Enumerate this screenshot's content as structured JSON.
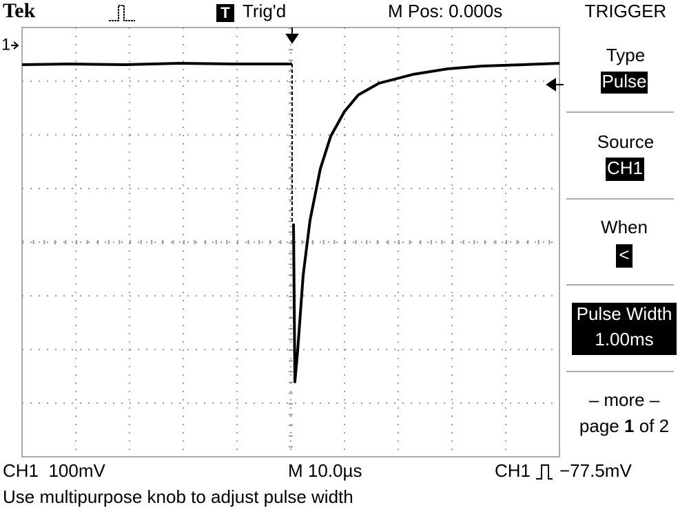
{
  "header": {
    "brand": "Tek",
    "trigger_status_icon": "T",
    "trigger_status": "Trig'd",
    "position": "M Pos: 0.000s"
  },
  "channel_marker": "1",
  "menu": {
    "title": "TRIGGER",
    "items": [
      {
        "label": "Type",
        "value": "Pulse"
      },
      {
        "label": "Source",
        "value": "CH1"
      },
      {
        "label": "When",
        "value": "<"
      },
      {
        "label": "Pulse Width",
        "value": "1.00ms"
      }
    ],
    "more": {
      "label": "– more –",
      "prefix": "page",
      "number": "1",
      "suffix": "of 2"
    }
  },
  "footer": {
    "channel_scale": "CH1  100mV",
    "timebase": "M 10.0µs",
    "trigger_source": "CH1",
    "trigger_level": "−77.5mV"
  },
  "message": "Use multipurpose knob to adjust pulse width"
}
